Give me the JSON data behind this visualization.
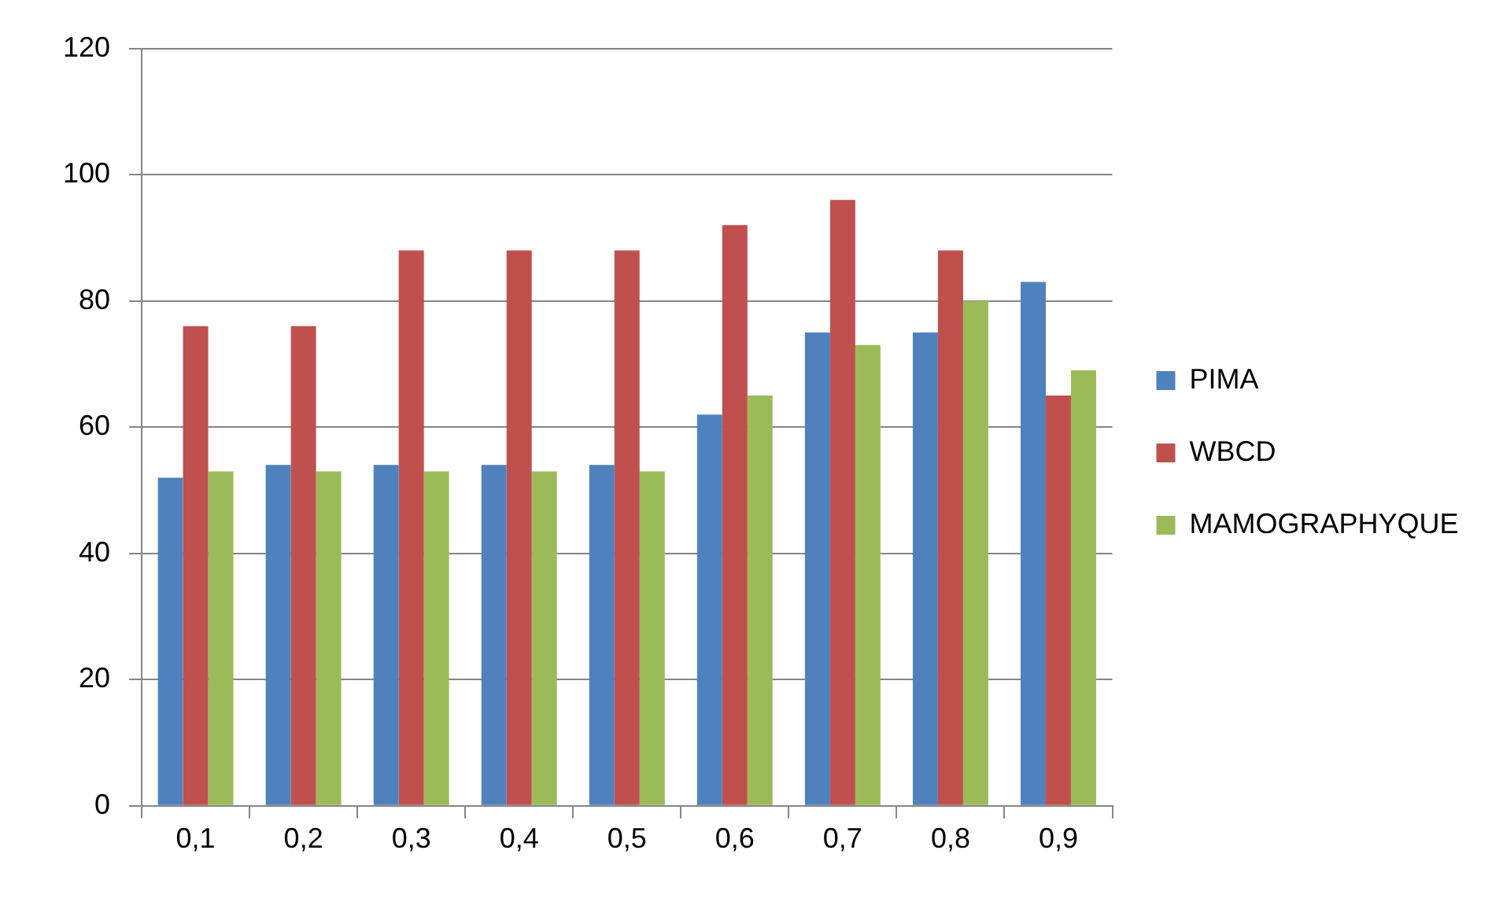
{
  "chart_data": {
    "type": "bar",
    "categories": [
      "0,1",
      "0,2",
      "0,3",
      "0,4",
      "0,5",
      "0,6",
      "0,7",
      "0,8",
      "0,9"
    ],
    "series": [
      {
        "name": "PIMA",
        "color": "#4f81bd",
        "values": [
          52,
          54,
          54,
          54,
          54,
          62,
          75,
          75,
          83
        ]
      },
      {
        "name": "WBCD",
        "color": "#c0504d",
        "values": [
          76,
          76,
          88,
          88,
          88,
          92,
          96,
          88,
          65
        ]
      },
      {
        "name": "MAMOGRAPHYQUE",
        "color": "#9bbb59",
        "values": [
          53,
          53,
          53,
          53,
          53,
          65,
          73,
          80,
          69
        ]
      }
    ],
    "ylim": [
      0,
      120
    ],
    "yticks": [
      0,
      20,
      40,
      60,
      80,
      100,
      120
    ],
    "grid": "y",
    "legend": "right"
  }
}
